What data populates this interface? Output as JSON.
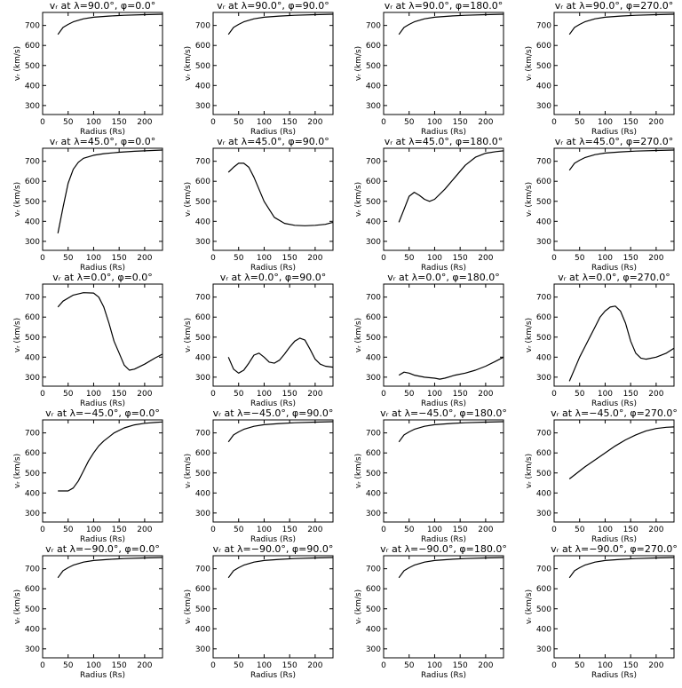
{
  "chart_data": [
    {
      "type": "line",
      "title": "vᵣ at λ=90.0°, φ=0.0°",
      "xlabel": "Radius (Rs)",
      "ylabel": "vᵣ (km/s)",
      "xlim": [
        0,
        235
      ],
      "ylim": [
        255,
        765
      ],
      "xticks": [
        0,
        50,
        100,
        150,
        200
      ],
      "yticks": [
        300,
        400,
        500,
        600,
        700
      ],
      "x": [
        30,
        40,
        50,
        60,
        80,
        100,
        130,
        160,
        200,
        235
      ],
      "y": [
        655,
        690,
        705,
        718,
        733,
        741,
        747,
        751,
        754,
        756
      ]
    },
    {
      "type": "line",
      "title": "vᵣ at λ=90.0°, φ=90.0°",
      "xlabel": "Radius (Rs)",
      "ylabel": "vᵣ (km/s)",
      "xlim": [
        0,
        235
      ],
      "ylim": [
        255,
        765
      ],
      "xticks": [
        0,
        50,
        100,
        150,
        200
      ],
      "yticks": [
        300,
        400,
        500,
        600,
        700
      ],
      "x": [
        30,
        40,
        50,
        60,
        80,
        100,
        130,
        160,
        200,
        235
      ],
      "y": [
        655,
        690,
        705,
        718,
        733,
        741,
        747,
        751,
        754,
        756
      ]
    },
    {
      "type": "line",
      "title": "vᵣ at λ=90.0°, φ=180.0°",
      "xlabel": "Radius (Rs)",
      "ylabel": "vᵣ (km/s)",
      "xlim": [
        0,
        235
      ],
      "ylim": [
        255,
        765
      ],
      "xticks": [
        0,
        50,
        100,
        150,
        200
      ],
      "yticks": [
        300,
        400,
        500,
        600,
        700
      ],
      "x": [
        30,
        40,
        50,
        60,
        80,
        100,
        130,
        160,
        200,
        235
      ],
      "y": [
        655,
        690,
        705,
        718,
        733,
        741,
        747,
        751,
        754,
        756
      ]
    },
    {
      "type": "line",
      "title": "vᵣ at λ=90.0°, φ=270.0°",
      "xlabel": "Radius (Rs)",
      "ylabel": "vᵣ (km/s)",
      "xlim": [
        0,
        235
      ],
      "ylim": [
        255,
        765
      ],
      "xticks": [
        0,
        50,
        100,
        150,
        200
      ],
      "yticks": [
        300,
        400,
        500,
        600,
        700
      ],
      "x": [
        30,
        40,
        50,
        60,
        80,
        100,
        130,
        160,
        200,
        235
      ],
      "y": [
        655,
        690,
        705,
        718,
        733,
        741,
        747,
        751,
        754,
        756
      ]
    },
    {
      "type": "line",
      "title": "vᵣ at λ=45.0°, φ=0.0°",
      "xlabel": "Radius (Rs)",
      "ylabel": "vᵣ (km/s)",
      "xlim": [
        0,
        235
      ],
      "ylim": [
        255,
        765
      ],
      "xticks": [
        0,
        50,
        100,
        150,
        200
      ],
      "yticks": [
        300,
        400,
        500,
        600,
        700
      ],
      "x": [
        30,
        40,
        50,
        60,
        70,
        80,
        100,
        120,
        150,
        180,
        235
      ],
      "y": [
        340,
        470,
        590,
        660,
        695,
        715,
        730,
        738,
        745,
        750,
        756
      ]
    },
    {
      "type": "line",
      "title": "vᵣ at λ=45.0°, φ=90.0°",
      "xlabel": "Radius (Rs)",
      "ylabel": "vᵣ (km/s)",
      "xlim": [
        0,
        235
      ],
      "ylim": [
        255,
        765
      ],
      "xticks": [
        0,
        50,
        100,
        150,
        200
      ],
      "yticks": [
        300,
        400,
        500,
        600,
        700
      ],
      "x": [
        30,
        40,
        50,
        60,
        70,
        80,
        100,
        120,
        140,
        160,
        180,
        200,
        220,
        235
      ],
      "y": [
        645,
        670,
        690,
        690,
        670,
        620,
        500,
        420,
        390,
        380,
        378,
        380,
        385,
        395
      ]
    },
    {
      "type": "line",
      "title": "vᵣ at λ=45.0°, φ=180.0°",
      "xlabel": "Radius (Rs)",
      "ylabel": "vᵣ (km/s)",
      "xlim": [
        0,
        235
      ],
      "ylim": [
        255,
        765
      ],
      "xticks": [
        0,
        50,
        100,
        150,
        200
      ],
      "yticks": [
        300,
        400,
        500,
        600,
        700
      ],
      "x": [
        30,
        40,
        50,
        60,
        70,
        80,
        90,
        100,
        120,
        140,
        160,
        180,
        200,
        220,
        235
      ],
      "y": [
        395,
        460,
        525,
        545,
        530,
        510,
        500,
        510,
        560,
        620,
        680,
        720,
        740,
        748,
        752
      ]
    },
    {
      "type": "line",
      "title": "vᵣ at λ=45.0°, φ=270.0°",
      "xlabel": "Radius (Rs)",
      "ylabel": "vᵣ (km/s)",
      "xlim": [
        0,
        235
      ],
      "ylim": [
        255,
        765
      ],
      "xticks": [
        0,
        50,
        100,
        150,
        200
      ],
      "yticks": [
        300,
        400,
        500,
        600,
        700
      ],
      "x": [
        30,
        40,
        50,
        60,
        80,
        100,
        130,
        160,
        200,
        235
      ],
      "y": [
        655,
        690,
        705,
        718,
        733,
        741,
        747,
        751,
        754,
        756
      ]
    },
    {
      "type": "line",
      "title": "vᵣ at λ=0.0°, φ=0.0°",
      "xlabel": "Radius (Rs)",
      "ylabel": "vᵣ (km/s)",
      "xlim": [
        0,
        235
      ],
      "ylim": [
        255,
        765
      ],
      "xticks": [
        0,
        50,
        100,
        150,
        200
      ],
      "yticks": [
        300,
        400,
        500,
        600,
        700
      ],
      "x": [
        30,
        40,
        60,
        80,
        100,
        110,
        120,
        130,
        140,
        150,
        160,
        170,
        180,
        200,
        220,
        235
      ],
      "y": [
        650,
        680,
        710,
        722,
        720,
        700,
        650,
        570,
        480,
        420,
        360,
        335,
        340,
        365,
        395,
        415
      ]
    },
    {
      "type": "line",
      "title": "vᵣ at λ=0.0°, φ=90.0°",
      "xlabel": "Radius (Rs)",
      "ylabel": "vᵣ (km/s)",
      "xlim": [
        0,
        235
      ],
      "ylim": [
        255,
        765
      ],
      "xticks": [
        0,
        50,
        100,
        150,
        200
      ],
      "yticks": [
        300,
        400,
        500,
        600,
        700
      ],
      "x": [
        30,
        40,
        50,
        60,
        70,
        80,
        90,
        100,
        110,
        120,
        130,
        140,
        150,
        160,
        170,
        180,
        190,
        200,
        210,
        220,
        235
      ],
      "y": [
        400,
        340,
        320,
        335,
        370,
        410,
        420,
        400,
        375,
        370,
        385,
        415,
        450,
        480,
        495,
        485,
        440,
        390,
        365,
        355,
        350
      ]
    },
    {
      "type": "line",
      "title": "vᵣ at λ=0.0°, φ=180.0°",
      "xlabel": "Radius (Rs)",
      "ylabel": "vᵣ (km/s)",
      "xlim": [
        0,
        235
      ],
      "ylim": [
        255,
        765
      ],
      "xticks": [
        0,
        50,
        100,
        150,
        200
      ],
      "yticks": [
        300,
        400,
        500,
        600,
        700
      ],
      "x": [
        30,
        40,
        50,
        60,
        80,
        100,
        110,
        120,
        140,
        160,
        180,
        200,
        220,
        235
      ],
      "y": [
        310,
        325,
        320,
        310,
        300,
        295,
        290,
        295,
        310,
        320,
        335,
        355,
        380,
        400
      ]
    },
    {
      "type": "line",
      "title": "vᵣ at λ=0.0°, φ=270.0°",
      "xlabel": "Radius (Rs)",
      "ylabel": "vᵣ (km/s)",
      "xlim": [
        0,
        235
      ],
      "ylim": [
        255,
        765
      ],
      "xticks": [
        0,
        50,
        100,
        150,
        200
      ],
      "yticks": [
        300,
        400,
        500,
        600,
        700
      ],
      "x": [
        30,
        40,
        50,
        60,
        70,
        80,
        90,
        100,
        110,
        120,
        130,
        140,
        150,
        160,
        170,
        180,
        200,
        220,
        235
      ],
      "y": [
        280,
        340,
        400,
        450,
        500,
        550,
        600,
        630,
        650,
        655,
        630,
        570,
        480,
        420,
        395,
        390,
        400,
        420,
        445
      ]
    },
    {
      "type": "line",
      "title": "vᵣ at λ=−45.0°, φ=0.0°",
      "xlabel": "Radius (Rs)",
      "ylabel": "vᵣ (km/s)",
      "xlim": [
        0,
        235
      ],
      "ylim": [
        255,
        765
      ],
      "xticks": [
        0,
        50,
        100,
        150,
        200
      ],
      "yticks": [
        300,
        400,
        500,
        600,
        700
      ],
      "x": [
        30,
        40,
        50,
        60,
        70,
        80,
        90,
        100,
        110,
        120,
        130,
        140,
        160,
        180,
        200,
        220,
        235
      ],
      "y": [
        410,
        410,
        410,
        425,
        460,
        510,
        560,
        600,
        635,
        660,
        680,
        700,
        725,
        740,
        748,
        752,
        755
      ]
    },
    {
      "type": "line",
      "title": "vᵣ at λ=−45.0°, φ=90.0°",
      "xlabel": "Radius (Rs)",
      "ylabel": "vᵣ (km/s)",
      "xlim": [
        0,
        235
      ],
      "ylim": [
        255,
        765
      ],
      "xticks": [
        0,
        50,
        100,
        150,
        200
      ],
      "yticks": [
        300,
        400,
        500,
        600,
        700
      ],
      "x": [
        30,
        40,
        50,
        60,
        80,
        100,
        130,
        160,
        200,
        235
      ],
      "y": [
        655,
        690,
        705,
        718,
        733,
        741,
        747,
        751,
        754,
        756
      ]
    },
    {
      "type": "line",
      "title": "vᵣ at λ=−45.0°, φ=180.0°",
      "xlabel": "Radius (Rs)",
      "ylabel": "vᵣ (km/s)",
      "xlim": [
        0,
        235
      ],
      "ylim": [
        255,
        765
      ],
      "xticks": [
        0,
        50,
        100,
        150,
        200
      ],
      "yticks": [
        300,
        400,
        500,
        600,
        700
      ],
      "x": [
        30,
        40,
        50,
        60,
        80,
        100,
        130,
        160,
        200,
        235
      ],
      "y": [
        655,
        690,
        705,
        718,
        733,
        741,
        747,
        751,
        754,
        756
      ]
    },
    {
      "type": "line",
      "title": "vᵣ at λ=−45.0°, φ=270.0°",
      "xlabel": "Radius (Rs)",
      "ylabel": "vᵣ (km/s)",
      "xlim": [
        0,
        235
      ],
      "ylim": [
        255,
        765
      ],
      "xticks": [
        0,
        50,
        100,
        150,
        200
      ],
      "yticks": [
        300,
        400,
        500,
        600,
        700
      ],
      "x": [
        30,
        40,
        60,
        80,
        100,
        120,
        140,
        160,
        180,
        200,
        220,
        235
      ],
      "y": [
        470,
        490,
        530,
        565,
        600,
        635,
        665,
        690,
        710,
        722,
        728,
        730
      ]
    },
    {
      "type": "line",
      "title": "vᵣ at λ=−90.0°, φ=0.0°",
      "xlabel": "Radius (Rs)",
      "ylabel": "vᵣ (km/s)",
      "xlim": [
        0,
        235
      ],
      "ylim": [
        255,
        765
      ],
      "xticks": [
        0,
        50,
        100,
        150,
        200
      ],
      "yticks": [
        300,
        400,
        500,
        600,
        700
      ],
      "x": [
        30,
        40,
        50,
        60,
        80,
        100,
        130,
        160,
        200,
        235
      ],
      "y": [
        655,
        690,
        705,
        718,
        733,
        741,
        747,
        751,
        754,
        756
      ]
    },
    {
      "type": "line",
      "title": "vᵣ at λ=−90.0°, φ=90.0°",
      "xlabel": "Radius (Rs)",
      "ylabel": "vᵣ (km/s)",
      "xlim": [
        0,
        235
      ],
      "ylim": [
        255,
        765
      ],
      "xticks": [
        0,
        50,
        100,
        150,
        200
      ],
      "yticks": [
        300,
        400,
        500,
        600,
        700
      ],
      "x": [
        30,
        40,
        50,
        60,
        80,
        100,
        130,
        160,
        200,
        235
      ],
      "y": [
        655,
        690,
        705,
        718,
        733,
        741,
        747,
        751,
        754,
        756
      ]
    },
    {
      "type": "line",
      "title": "vᵣ at λ=−90.0°, φ=180.0°",
      "xlabel": "Radius (Rs)",
      "ylabel": "vᵣ (km/s)",
      "xlim": [
        0,
        235
      ],
      "ylim": [
        255,
        765
      ],
      "xticks": [
        0,
        50,
        100,
        150,
        200
      ],
      "yticks": [
        300,
        400,
        500,
        600,
        700
      ],
      "x": [
        30,
        40,
        50,
        60,
        80,
        100,
        130,
        160,
        200,
        235
      ],
      "y": [
        655,
        690,
        705,
        718,
        733,
        741,
        747,
        751,
        754,
        756
      ]
    },
    {
      "type": "line",
      "title": "vᵣ at λ=−90.0°, φ=270.0°",
      "xlabel": "Radius (Rs)",
      "ylabel": "vᵣ (km/s)",
      "xlim": [
        0,
        235
      ],
      "ylim": [
        255,
        765
      ],
      "xticks": [
        0,
        50,
        100,
        150,
        200
      ],
      "yticks": [
        300,
        400,
        500,
        600,
        700
      ],
      "x": [
        30,
        40,
        50,
        60,
        80,
        100,
        130,
        160,
        200,
        235
      ],
      "y": [
        655,
        690,
        705,
        718,
        733,
        741,
        747,
        751,
        754,
        756
      ]
    }
  ]
}
